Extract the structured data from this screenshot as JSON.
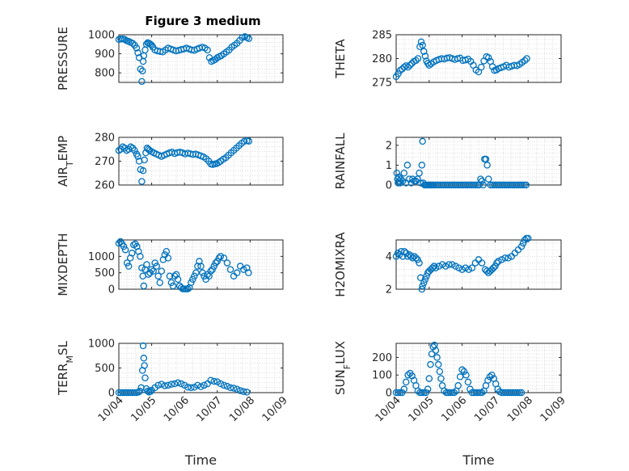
{
  "figure_title": "Figure 3 medium",
  "colors": {
    "marker": "#0072BD",
    "axis": "#262626",
    "grid": "#c8c8c8"
  },
  "chart_data": [
    {
      "type": "scatter",
      "title": "Figure 3 medium",
      "ylabel": "PRESSURE",
      "xlabel": "",
      "xlim": [
        0,
        5
      ],
      "xticks": [
        0,
        1,
        2,
        3,
        4,
        5
      ],
      "xticklabels": [
        "10/04",
        "10/05",
        "10/06",
        "10/07",
        "10/08",
        "10/09"
      ],
      "ylim": [
        750,
        1000
      ],
      "yticks": [
        800,
        900,
        1000
      ],
      "yticklabels": [
        "800",
        "900",
        "1000"
      ],
      "grid": "dotted",
      "x": [
        0,
        0.06,
        0.12,
        0.18,
        0.24,
        0.3,
        0.36,
        0.42,
        0.48,
        0.54,
        0.58,
        0.62,
        0.66,
        0.7,
        0.72,
        0.74,
        0.76,
        0.8,
        0.84,
        0.88,
        0.92,
        0.96,
        1.0,
        1.04,
        1.1,
        1.18,
        1.26,
        1.34,
        1.42,
        1.5,
        1.58,
        1.66,
        1.74,
        1.82,
        1.9,
        1.98,
        2.06,
        2.14,
        2.22,
        2.3,
        2.38,
        2.46,
        2.54,
        2.62,
        2.7,
        2.76,
        2.82,
        2.88,
        2.94,
        3.0,
        3.06,
        3.12,
        3.2,
        3.28,
        3.36,
        3.44,
        3.52,
        3.6,
        3.68,
        3.76,
        3.84,
        3.9,
        3.96
      ],
      "y": [
        975,
        978,
        978,
        975,
        968,
        965,
        960,
        955,
        945,
        930,
        905,
        880,
        820,
        755,
        810,
        860,
        890,
        920,
        950,
        958,
        955,
        950,
        945,
        935,
        920,
        915,
        912,
        910,
        920,
        930,
        925,
        920,
        915,
        918,
        922,
        925,
        930,
        925,
        920,
        918,
        925,
        930,
        935,
        930,
        920,
        880,
        860,
        865,
        870,
        880,
        885,
        890,
        900,
        910,
        920,
        935,
        945,
        955,
        970,
        985,
        990,
        985,
        980
      ]
    },
    {
      "type": "scatter",
      "ylabel": "THETA",
      "xlabel": "",
      "xlim": [
        0,
        5
      ],
      "xticks": [
        0,
        1,
        2,
        3,
        4,
        5
      ],
      "xticklabels": [
        "10/04",
        "10/05",
        "10/06",
        "10/07",
        "10/08",
        "10/09"
      ],
      "ylim": [
        275,
        285
      ],
      "yticks": [
        275,
        280,
        285
      ],
      "yticklabels": [
        "275",
        "280",
        "285"
      ],
      "grid": "dotted",
      "x": [
        0,
        0.06,
        0.12,
        0.18,
        0.24,
        0.3,
        0.36,
        0.42,
        0.48,
        0.54,
        0.6,
        0.66,
        0.72,
        0.76,
        0.8,
        0.84,
        0.88,
        0.92,
        0.96,
        1.0,
        1.06,
        1.14,
        1.22,
        1.3,
        1.38,
        1.46,
        1.54,
        1.62,
        1.7,
        1.78,
        1.86,
        1.94,
        2.02,
        2.1,
        2.18,
        2.26,
        2.34,
        2.42,
        2.5,
        2.58,
        2.66,
        2.74,
        2.8,
        2.86,
        2.92,
        2.98,
        3.04,
        3.1,
        3.18,
        3.26,
        3.34,
        3.42,
        3.5,
        3.58,
        3.66,
        3.74,
        3.82,
        3.9,
        3.96
      ],
      "y": [
        276.2,
        276.8,
        277.5,
        277.8,
        278.2,
        278.5,
        278.2,
        278.6,
        279,
        279.4,
        279.6,
        280,
        282.5,
        283.5,
        282.8,
        281.5,
        280.5,
        279.5,
        279,
        278.6,
        278.9,
        279.3,
        279.6,
        279.8,
        280,
        279.9,
        280.1,
        280.2,
        280,
        279.8,
        280,
        280.1,
        279.6,
        279.7,
        279.9,
        279.4,
        278.6,
        277.6,
        277.2,
        278.2,
        279.5,
        280.4,
        280.2,
        279.4,
        278.3,
        277.5,
        277.6,
        277.9,
        278.1,
        278.3,
        278.6,
        278.2,
        278.4,
        278.6,
        278.5,
        278.8,
        279.2,
        279.6,
        280
      ]
    },
    {
      "type": "scatter",
      "ylabel": "AIR_TEMP",
      "xlabel": "",
      "xlim": [
        0,
        5
      ],
      "xticks": [
        0,
        1,
        2,
        3,
        4,
        5
      ],
      "xticklabels": [
        "10/04",
        "10/05",
        "10/06",
        "10/07",
        "10/08",
        "10/09"
      ],
      "ylim": [
        260,
        280
      ],
      "yticks": [
        260,
        270,
        280
      ],
      "yticklabels": [
        "260",
        "270",
        "280"
      ],
      "grid": "dotted",
      "x": [
        0,
        0.06,
        0.12,
        0.18,
        0.24,
        0.3,
        0.36,
        0.42,
        0.48,
        0.54,
        0.58,
        0.62,
        0.66,
        0.7,
        0.74,
        0.78,
        0.82,
        0.86,
        0.9,
        0.94,
        1.0,
        1.06,
        1.14,
        1.22,
        1.3,
        1.38,
        1.46,
        1.54,
        1.62,
        1.7,
        1.78,
        1.86,
        1.94,
        2.02,
        2.1,
        2.18,
        2.26,
        2.34,
        2.42,
        2.5,
        2.58,
        2.66,
        2.74,
        2.8,
        2.86,
        2.92,
        2.98,
        3.04,
        3.1,
        3.18,
        3.26,
        3.34,
        3.42,
        3.5,
        3.58,
        3.66,
        3.74,
        3.82,
        3.9,
        3.96
      ],
      "y": [
        274.5,
        275,
        276,
        275.5,
        274.5,
        275,
        276,
        275.5,
        274.5,
        273,
        272,
        270,
        266.5,
        261.5,
        266,
        270.5,
        273.5,
        275.5,
        275,
        274.5,
        274,
        273.5,
        273,
        272.5,
        272,
        272.5,
        273,
        273.5,
        273.8,
        273.2,
        273.6,
        273.8,
        273.5,
        273,
        273.4,
        273.1,
        272.8,
        273,
        272.6,
        272.2,
        271.8,
        271,
        270,
        268.8,
        268.6,
        268.8,
        269,
        269.4,
        270,
        270.8,
        271.5,
        272.5,
        273.5,
        274.5,
        275.5,
        276.5,
        277.5,
        278.3,
        278.6,
        278.4
      ]
    },
    {
      "type": "scatter",
      "ylabel": "RAINFALL",
      "xlabel": "",
      "xlim": [
        0,
        5
      ],
      "xticks": [
        0,
        1,
        2,
        3,
        4,
        5
      ],
      "xticklabels": [
        "10/04",
        "10/05",
        "10/06",
        "10/07",
        "10/08",
        "10/09"
      ],
      "ylim": [
        0,
        2.4
      ],
      "yticks": [
        0,
        1,
        2
      ],
      "yticklabels": [
        "0",
        "1",
        "2"
      ],
      "grid": "dotted",
      "x": [
        0.02,
        0.04,
        0.06,
        0.08,
        0.1,
        0.12,
        0.14,
        0.2,
        0.24,
        0.3,
        0.34,
        0.4,
        0.46,
        0.5,
        0.55,
        0.6,
        0.65,
        0.7,
        0.74,
        0.78,
        0.8,
        0.82,
        0.86,
        0.9,
        0.94,
        0.98,
        1.02,
        1.06,
        1.1,
        1.14,
        1.2,
        1.26,
        1.32,
        1.38,
        1.44,
        1.5,
        1.56,
        1.62,
        1.68,
        1.74,
        1.8,
        1.86,
        1.92,
        1.98,
        2.04,
        2.1,
        2.16,
        2.22,
        2.28,
        2.34,
        2.4,
        2.46,
        2.52,
        2.56,
        2.6,
        2.64,
        2.68,
        2.72,
        2.76,
        2.8,
        2.86,
        2.92,
        2.98,
        3.04,
        3.1,
        3.16,
        3.22,
        3.28,
        3.34,
        3.4,
        3.46,
        3.52,
        3.58,
        3.64,
        3.7,
        3.76,
        3.82,
        3.88,
        3.94
      ],
      "y": [
        0.6,
        0.3,
        0.1,
        0.4,
        0.2,
        0.1,
        0.3,
        0.2,
        0.6,
        0.1,
        1.0,
        0.3,
        0.1,
        0.3,
        0.2,
        0.2,
        0.3,
        0.6,
        0.1,
        1.0,
        2.2,
        0.1,
        0,
        0,
        0,
        0,
        0,
        0,
        0,
        0,
        0,
        0,
        0,
        0,
        0,
        0,
        0,
        0,
        0,
        0,
        0,
        0,
        0,
        0,
        0,
        0,
        0,
        0,
        0,
        0,
        0,
        0,
        0,
        0.3,
        0.2,
        0,
        1.3,
        1.3,
        1.0,
        0.3,
        0,
        0,
        0,
        0,
        0,
        0,
        0,
        0,
        0,
        0,
        0,
        0,
        0,
        0,
        0,
        0,
        0,
        0,
        0
      ]
    },
    {
      "type": "scatter",
      "ylabel": "MIXDEPTH",
      "xlabel": "",
      "xlim": [
        0,
        5
      ],
      "xticks": [
        0,
        1,
        2,
        3,
        4,
        5
      ],
      "xticklabels": [
        "10/04",
        "10/05",
        "10/06",
        "10/07",
        "10/08",
        "10/09"
      ],
      "ylim": [
        0,
        1500
      ],
      "yticks": [
        0,
        500,
        1000
      ],
      "yticklabels": [
        "0",
        "500",
        "1000"
      ],
      "grid": "dotted",
      "x": [
        0,
        0.05,
        0.1,
        0.15,
        0.2,
        0.25,
        0.3,
        0.35,
        0.4,
        0.45,
        0.5,
        0.55,
        0.6,
        0.65,
        0.7,
        0.73,
        0.76,
        0.8,
        0.85,
        0.9,
        0.95,
        1.0,
        1.05,
        1.1,
        1.15,
        1.2,
        1.25,
        1.3,
        1.35,
        1.4,
        1.45,
        1.5,
        1.55,
        1.6,
        1.65,
        1.7,
        1.75,
        1.8,
        1.85,
        1.9,
        1.95,
        2.0,
        2.05,
        2.1,
        2.15,
        2.2,
        2.25,
        2.3,
        2.35,
        2.4,
        2.45,
        2.5,
        2.55,
        2.6,
        2.65,
        2.7,
        2.75,
        2.8,
        2.85,
        2.9,
        2.95,
        3.0,
        3.05,
        3.1,
        3.2,
        3.3,
        3.4,
        3.5,
        3.6,
        3.7,
        3.8,
        3.9,
        3.95
      ],
      "y": [
        1400,
        1450,
        1380,
        1300,
        1200,
        800,
        700,
        950,
        1100,
        1350,
        1380,
        1300,
        1150,
        1000,
        650,
        400,
        100,
        600,
        750,
        450,
        500,
        600,
        550,
        800,
        700,
        400,
        200,
        550,
        900,
        1050,
        1150,
        950,
        400,
        200,
        100,
        400,
        450,
        300,
        100,
        50,
        10,
        10,
        10,
        10,
        50,
        200,
        300,
        400,
        500,
        700,
        850,
        700,
        500,
        400,
        300,
        450,
        400,
        550,
        600,
        700,
        800,
        850,
        950,
        1000,
        950,
        800,
        600,
        400,
        500,
        700,
        600,
        650,
        500
      ]
    },
    {
      "type": "scatter",
      "ylabel": "H2OMIXRA",
      "xlabel": "",
      "xlim": [
        0,
        5
      ],
      "xticks": [
        0,
        1,
        2,
        3,
        4,
        5
      ],
      "xticklabels": [
        "10/04",
        "10/05",
        "10/06",
        "10/07",
        "10/08",
        "10/09"
      ],
      "ylim": [
        2,
        5
      ],
      "yticks": [
        2,
        4
      ],
      "yticklabels": [
        "2",
        "4"
      ],
      "grid": "dotted",
      "x": [
        0,
        0.05,
        0.1,
        0.15,
        0.2,
        0.25,
        0.3,
        0.35,
        0.4,
        0.45,
        0.5,
        0.55,
        0.6,
        0.65,
        0.7,
        0.74,
        0.78,
        0.8,
        0.84,
        0.88,
        0.92,
        0.96,
        1.0,
        1.05,
        1.1,
        1.15,
        1.2,
        1.3,
        1.4,
        1.5,
        1.6,
        1.7,
        1.8,
        1.9,
        2.0,
        2.1,
        2.2,
        2.3,
        2.4,
        2.5,
        2.6,
        2.7,
        2.75,
        2.8,
        2.85,
        2.9,
        2.95,
        3.0,
        3.05,
        3.1,
        3.2,
        3.3,
        3.4,
        3.5,
        3.6,
        3.7,
        3.8,
        3.85,
        3.9,
        3.95,
        4.0
      ],
      "y": [
        4.0,
        4.2,
        4.1,
        4.3,
        4.0,
        4.3,
        4.2,
        4.0,
        4.1,
        4.0,
        3.9,
        4.0,
        3.9,
        3.8,
        3.6,
        2.7,
        2.0,
        2.2,
        2.4,
        2.6,
        2.8,
        3.0,
        3.1,
        3.2,
        3.3,
        3.4,
        3.3,
        3.4,
        3.5,
        3.4,
        3.5,
        3.5,
        3.4,
        3.3,
        3.2,
        3.3,
        3.2,
        3.3,
        3.6,
        3.8,
        3.6,
        3.2,
        3.1,
        3.0,
        3.1,
        3.2,
        3.3,
        3.4,
        3.6,
        3.7,
        3.8,
        3.9,
        3.9,
        4.0,
        4.2,
        4.4,
        4.6,
        4.8,
        5.0,
        5.1,
        5.1
      ]
    },
    {
      "type": "scatter",
      "ylabel": "TERR_MSL",
      "xlabel": "Time",
      "xlim": [
        0,
        5
      ],
      "xticks": [
        0,
        1,
        2,
        3,
        4,
        5
      ],
      "xticklabels": [
        "10/04",
        "10/05",
        "10/06",
        "10/07",
        "10/08",
        "10/09"
      ],
      "ylim": [
        0,
        1000
      ],
      "yticks": [
        0,
        500,
        1000
      ],
      "yticklabels": [
        "0",
        "500",
        "1000"
      ],
      "grid": "dotted",
      "x": [
        0,
        0.06,
        0.12,
        0.18,
        0.24,
        0.3,
        0.36,
        0.42,
        0.48,
        0.54,
        0.6,
        0.64,
        0.68,
        0.72,
        0.74,
        0.76,
        0.78,
        0.8,
        0.84,
        0.88,
        0.92,
        0.96,
        1.0,
        1.1,
        1.2,
        1.3,
        1.4,
        1.5,
        1.6,
        1.7,
        1.8,
        1.9,
        2.0,
        2.1,
        2.2,
        2.3,
        2.4,
        2.5,
        2.6,
        2.7,
        2.8,
        2.9,
        3.0,
        3.1,
        3.2,
        3.3,
        3.4,
        3.5,
        3.6,
        3.7,
        3.8,
        3.9
      ],
      "y": [
        0,
        0,
        0,
        0,
        0,
        0,
        0,
        0,
        0,
        0,
        10,
        30,
        100,
        450,
        950,
        700,
        550,
        300,
        80,
        30,
        10,
        20,
        50,
        100,
        150,
        170,
        140,
        150,
        170,
        180,
        200,
        180,
        150,
        110,
        100,
        110,
        150,
        120,
        150,
        180,
        250,
        230,
        220,
        180,
        150,
        130,
        100,
        90,
        70,
        40,
        20,
        10
      ]
    },
    {
      "type": "scatter",
      "ylabel": "SUN_FLUX",
      "xlabel": "Time",
      "xlim": [
        0,
        5
      ],
      "xticks": [
        0,
        1,
        2,
        3,
        4,
        5
      ],
      "xticklabels": [
        "10/04",
        "10/05",
        "10/06",
        "10/07",
        "10/08",
        "10/09"
      ],
      "ylim": [
        0,
        280
      ],
      "yticks": [
        0,
        100,
        200
      ],
      "yticklabels": [
        "0",
        "100",
        "200"
      ],
      "grid": "dotted",
      "x": [
        0,
        0.06,
        0.12,
        0.18,
        0.24,
        0.3,
        0.36,
        0.42,
        0.48,
        0.54,
        0.6,
        0.66,
        0.72,
        0.78,
        0.84,
        0.9,
        0.96,
        1.0,
        1.04,
        1.08,
        1.12,
        1.16,
        1.2,
        1.24,
        1.28,
        1.32,
        1.36,
        1.4,
        1.46,
        1.52,
        1.58,
        1.64,
        1.7,
        1.76,
        1.82,
        1.88,
        1.94,
        2.0,
        2.06,
        2.12,
        2.18,
        2.24,
        2.3,
        2.36,
        2.42,
        2.48,
        2.54,
        2.6,
        2.66,
        2.72,
        2.78,
        2.84,
        2.9,
        2.96,
        3.02,
        3.08,
        3.14,
        3.2,
        3.26,
        3.32,
        3.38,
        3.44,
        3.5,
        3.56,
        3.62,
        3.68,
        3.74,
        3.8
      ],
      "y": [
        0,
        0,
        0,
        0,
        20,
        60,
        100,
        110,
        95,
        70,
        40,
        10,
        0,
        0,
        0,
        0,
        20,
        80,
        160,
        220,
        260,
        270,
        240,
        200,
        160,
        120,
        80,
        40,
        10,
        0,
        0,
        0,
        0,
        0,
        10,
        40,
        90,
        130,
        120,
        100,
        60,
        20,
        0,
        0,
        0,
        0,
        0,
        0,
        10,
        40,
        70,
        90,
        100,
        80,
        50,
        20,
        5,
        0,
        0,
        0,
        0,
        0,
        0,
        0,
        0,
        0,
        0,
        0
      ]
    }
  ]
}
